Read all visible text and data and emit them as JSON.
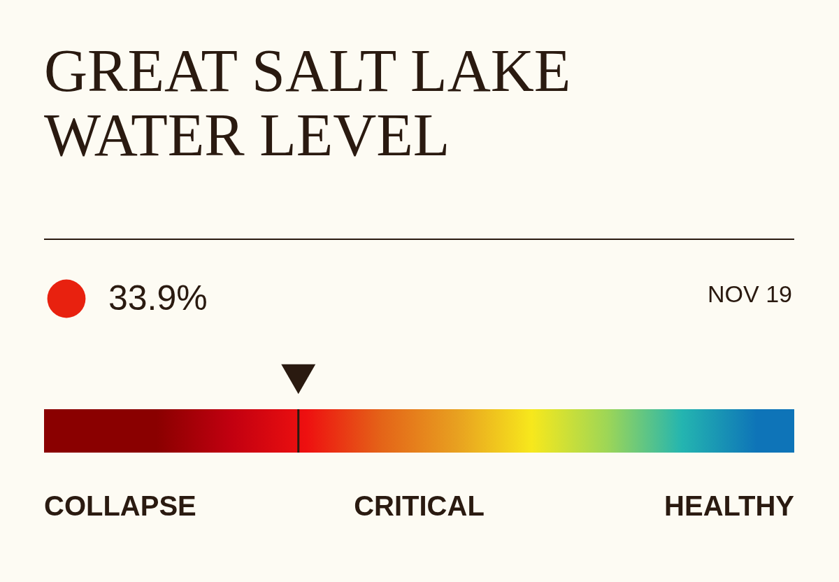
{
  "chart_data": {
    "type": "other",
    "title": "GREAT SALT LAKE WATER LEVEL",
    "values": [
      33.9
    ],
    "value_labels": [
      "33.9%"
    ],
    "color": "#e8210f",
    "annotations": [
      "NOV 19",
      "COLLAPSE",
      "CRITICAL",
      "HEALTHY"
    ]
  }
}
